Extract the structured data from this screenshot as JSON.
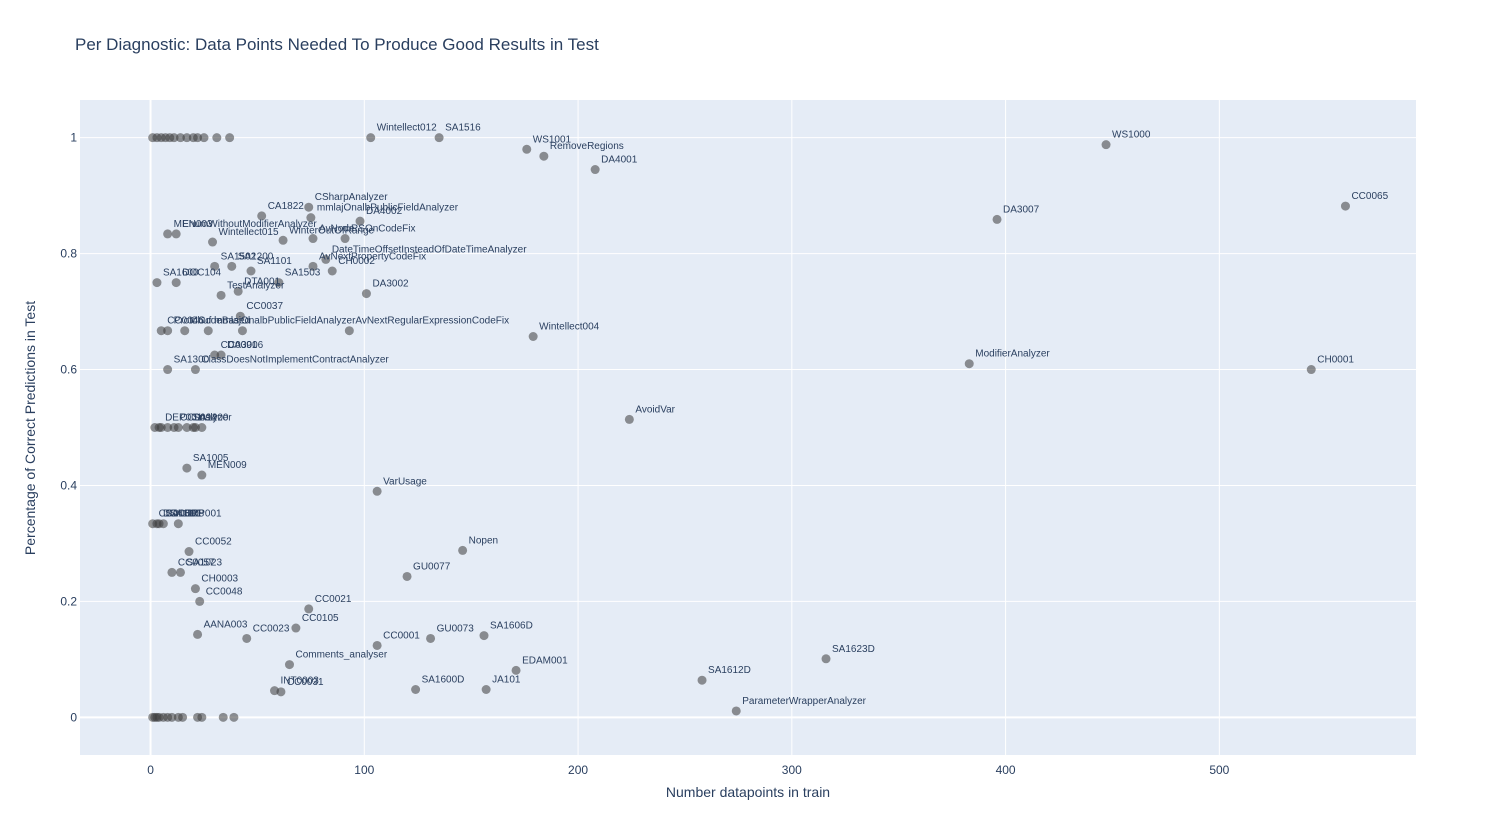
{
  "chart_data": {
    "type": "scatter",
    "title": "Per Diagnostic: Data Points Needed To Produce Good Results in Test",
    "xlabel": "Number datapoints in train",
    "ylabel": "Percentage of Correct Predictions in Test",
    "xlim": [
      -33,
      592
    ],
    "ylim": [
      -0.065,
      1.065
    ],
    "xticks": [
      0,
      100,
      200,
      300,
      400,
      500
    ],
    "yticks": [
      0,
      0.2,
      0.4,
      0.6,
      0.8,
      1
    ],
    "ytick_labels": [
      "0",
      "0.2",
      "0.4",
      "0.6",
      "0.8",
      "1"
    ],
    "grid": true,
    "legend": "none",
    "point_color": "#3c3c3c",
    "plot_bg": "#e5ecf6",
    "points": [
      {
        "x": 103,
        "y": 1.0,
        "label": "Wintellect012"
      },
      {
        "x": 135,
        "y": 1.0,
        "label": "SA1516"
      },
      {
        "x": 176,
        "y": 0.98,
        "label": "WS1001"
      },
      {
        "x": 184,
        "y": 0.968,
        "label": "RemoveRegions"
      },
      {
        "x": 208,
        "y": 0.945,
        "label": "DA4001"
      },
      {
        "x": 447,
        "y": 0.988,
        "label": "WS1000"
      },
      {
        "x": 559,
        "y": 0.882,
        "label": "CC0065"
      },
      {
        "x": 74,
        "y": 0.88,
        "label": "CSharpAnalyzer"
      },
      {
        "x": 75,
        "y": 0.862,
        "label": "mmlajOnalbPublicFieldAnalyzer"
      },
      {
        "x": 52,
        "y": 0.865,
        "label": "CA1822"
      },
      {
        "x": 98,
        "y": 0.856,
        "label": "DA4002"
      },
      {
        "x": 396,
        "y": 0.859,
        "label": "DA3007"
      },
      {
        "x": 8,
        "y": 0.834,
        "label": "MEN003"
      },
      {
        "x": 12,
        "y": 0.834,
        "label": "EnumWithoutModifierAnalyzer"
      },
      {
        "x": 29,
        "y": 0.82,
        "label": "Wintellect015"
      },
      {
        "x": 62,
        "y": 0.823,
        "label": "WinterOutOfRange"
      },
      {
        "x": 76,
        "y": 0.826,
        "label": "AvNode"
      },
      {
        "x": 91,
        "y": 0.826,
        "label": "RSOnCodeFix"
      },
      {
        "x": 82,
        "y": 0.79,
        "label": "DateTimeOffsetInsteadOfDateTimeAnalyzer"
      },
      {
        "x": 76,
        "y": 0.778,
        "label": "AvNextPropertyCodeFix"
      },
      {
        "x": 85,
        "y": 0.77,
        "label": "CH0002"
      },
      {
        "x": 30,
        "y": 0.778,
        "label": "SA1502"
      },
      {
        "x": 38,
        "y": 0.778,
        "label": "SA1200"
      },
      {
        "x": 47,
        "y": 0.77,
        "label": "SA1101"
      },
      {
        "x": 3,
        "y": 0.75,
        "label": "SA1600"
      },
      {
        "x": 12,
        "y": 0.75,
        "label": "DOC104"
      },
      {
        "x": 60,
        "y": 0.75,
        "label": "SA1503"
      },
      {
        "x": 41,
        "y": 0.735,
        "label": "DTA001"
      },
      {
        "x": 33,
        "y": 0.728,
        "label": "TestAnalyzer"
      },
      {
        "x": 101,
        "y": 0.731,
        "label": "DA3002"
      },
      {
        "x": 42,
        "y": 0.692,
        "label": "CC0037"
      },
      {
        "x": 5,
        "y": 0.667,
        "label": "CC0046"
      },
      {
        "x": 8,
        "y": 0.667,
        "label": "Protobuf"
      },
      {
        "x": 16,
        "y": 0.667,
        "label": "CCodeBased"
      },
      {
        "x": 27,
        "y": 0.667,
        "label": "mmlajOnalbPublicFieldAnalyzer"
      },
      {
        "x": 43,
        "y": 0.667,
        "label": ""
      },
      {
        "x": 93,
        "y": 0.667,
        "label": "AvNextRegularExpressionCodeFix"
      },
      {
        "x": 179,
        "y": 0.657,
        "label": "Wintellect004"
      },
      {
        "x": 30,
        "y": 0.625,
        "label": "CC0091"
      },
      {
        "x": 33,
        "y": 0.625,
        "label": "DA3006"
      },
      {
        "x": 8,
        "y": 0.6,
        "label": "SA1300"
      },
      {
        "x": 21,
        "y": 0.6,
        "label": "ClassDoesNotImplementContractAnalyzer"
      },
      {
        "x": 383,
        "y": 0.61,
        "label": "ModifierAnalyzer"
      },
      {
        "x": 543,
        "y": 0.6,
        "label": "CH0001"
      },
      {
        "x": 224,
        "y": 0.514,
        "label": "AvoidVar"
      },
      {
        "x": 2,
        "y": 0.5,
        "label": ""
      },
      {
        "x": 4,
        "y": 0.5,
        "label": "DEP001"
      },
      {
        "x": 5,
        "y": 0.5,
        "label": ""
      },
      {
        "x": 8,
        "y": 0.5,
        "label": ""
      },
      {
        "x": 11,
        "y": 0.5,
        "label": "CC0094"
      },
      {
        "x": 13,
        "y": 0.5,
        "label": ""
      },
      {
        "x": 17,
        "y": 0.5,
        "label": "SA1200"
      },
      {
        "x": 20,
        "y": 0.5,
        "label": "nalyzer"
      },
      {
        "x": 21,
        "y": 0.5,
        "label": ""
      },
      {
        "x": 24,
        "y": 0.5,
        "label": ""
      },
      {
        "x": 17,
        "y": 0.43,
        "label": "SA1005"
      },
      {
        "x": 24,
        "y": 0.418,
        "label": "MEN009"
      },
      {
        "x": 106,
        "y": 0.39,
        "label": "VarUsage"
      },
      {
        "x": 1,
        "y": 0.334,
        "label": "CC0061"
      },
      {
        "x": 3,
        "y": 0.334,
        "label": "DOC001"
      },
      {
        "x": 4,
        "y": 0.334,
        "label": "SA1000"
      },
      {
        "x": 6,
        "y": 0.334,
        "label": "SA1108"
      },
      {
        "x": 13,
        "y": 0.334,
        "label": "ERP001"
      },
      {
        "x": 146,
        "y": 0.288,
        "label": "Nopen"
      },
      {
        "x": 18,
        "y": 0.286,
        "label": "CC0052"
      },
      {
        "x": 10,
        "y": 0.25,
        "label": "CC0057"
      },
      {
        "x": 14,
        "y": 0.25,
        "label": "SA1023"
      },
      {
        "x": 120,
        "y": 0.243,
        "label": "GU0077"
      },
      {
        "x": 21,
        "y": 0.222,
        "label": "CH0003"
      },
      {
        "x": 23,
        "y": 0.2,
        "label": "CC0048"
      },
      {
        "x": 74,
        "y": 0.187,
        "label": "CC0021"
      },
      {
        "x": 68,
        "y": 0.154,
        "label": "CC0105"
      },
      {
        "x": 22,
        "y": 0.143,
        "label": "AANA003"
      },
      {
        "x": 45,
        "y": 0.136,
        "label": "CC0023"
      },
      {
        "x": 131,
        "y": 0.136,
        "label": "GU0073"
      },
      {
        "x": 156,
        "y": 0.141,
        "label": "SA1606D"
      },
      {
        "x": 106,
        "y": 0.124,
        "label": "CC0001"
      },
      {
        "x": 316,
        "y": 0.101,
        "label": "SA1623D"
      },
      {
        "x": 65,
        "y": 0.091,
        "label": "Comments_analyser"
      },
      {
        "x": 171,
        "y": 0.081,
        "label": "EDAM001"
      },
      {
        "x": 258,
        "y": 0.064,
        "label": "SA1612D"
      },
      {
        "x": 124,
        "y": 0.048,
        "label": "SA1600D"
      },
      {
        "x": 157,
        "y": 0.048,
        "label": "JA101"
      },
      {
        "x": 58,
        "y": 0.046,
        "label": "INT0003"
      },
      {
        "x": 61,
        "y": 0.044,
        "label": "CC0031"
      },
      {
        "x": 274,
        "y": 0.011,
        "label": "ParameterWrapperAnalyzer"
      },
      {
        "x": 1,
        "y": 1.0,
        "label": ""
      },
      {
        "x": 3,
        "y": 1.0,
        "label": ""
      },
      {
        "x": 5,
        "y": 1.0,
        "label": ""
      },
      {
        "x": 7,
        "y": 1.0,
        "label": ""
      },
      {
        "x": 9,
        "y": 1.0,
        "label": ""
      },
      {
        "x": 11,
        "y": 1.0,
        "label": ""
      },
      {
        "x": 14,
        "y": 1.0,
        "label": ""
      },
      {
        "x": 17,
        "y": 1.0,
        "label": ""
      },
      {
        "x": 20,
        "y": 1.0,
        "label": ""
      },
      {
        "x": 22,
        "y": 1.0,
        "label": ""
      },
      {
        "x": 25,
        "y": 1.0,
        "label": ""
      },
      {
        "x": 31,
        "y": 1.0,
        "label": ""
      },
      {
        "x": 37,
        "y": 1.0,
        "label": ""
      },
      {
        "x": 1,
        "y": 0.0,
        "label": ""
      },
      {
        "x": 2,
        "y": 0.0,
        "label": ""
      },
      {
        "x": 3,
        "y": 0.0,
        "label": ""
      },
      {
        "x": 4,
        "y": 0.0,
        "label": ""
      },
      {
        "x": 6,
        "y": 0.0,
        "label": ""
      },
      {
        "x": 8,
        "y": 0.0,
        "label": ""
      },
      {
        "x": 10,
        "y": 0.0,
        "label": ""
      },
      {
        "x": 13,
        "y": 0.0,
        "label": ""
      },
      {
        "x": 15,
        "y": 0.0,
        "label": ""
      },
      {
        "x": 22,
        "y": 0.0,
        "label": ""
      },
      {
        "x": 24,
        "y": 0.0,
        "label": ""
      },
      {
        "x": 34,
        "y": 0.0,
        "label": ""
      },
      {
        "x": 39,
        "y": 0.0,
        "label": ""
      }
    ]
  }
}
